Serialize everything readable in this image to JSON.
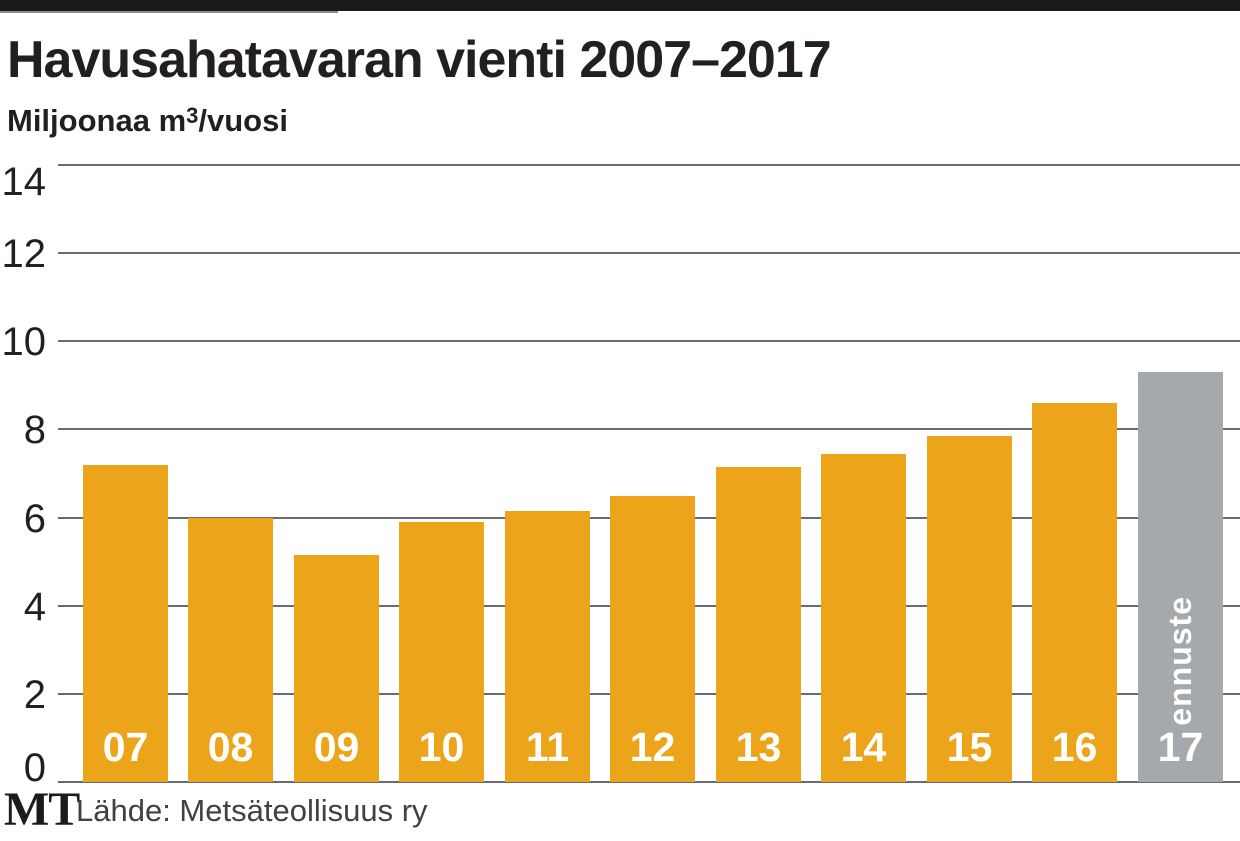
{
  "header": {
    "title": "Havusahatavaran vienti 2007–2017",
    "unit_prefix": "Miljoonaa m",
    "unit_sup": "3",
    "unit_suffix": "/vuosi"
  },
  "chart_data": {
    "type": "bar",
    "title": "Havusahatavaran vienti 2007–2017",
    "ylabel": "Miljoonaa m3/vuosi",
    "xlabel": "",
    "categories": [
      "07",
      "08",
      "09",
      "10",
      "11",
      "12",
      "13",
      "14",
      "15",
      "16",
      "17"
    ],
    "values": [
      7.2,
      6.0,
      5.15,
      5.9,
      6.15,
      6.5,
      7.15,
      7.45,
      7.85,
      8.6,
      9.3
    ],
    "ylim": [
      0,
      14
    ],
    "yticks": [
      14,
      12,
      10,
      8,
      6,
      4,
      2,
      0
    ],
    "grid": true,
    "legend": "none",
    "forecast": {
      "index": 10,
      "label": "ennuste"
    },
    "colors": {
      "bar": "#ECA41A",
      "forecast_bar": "#A6A9AB",
      "gridline": "#6A6B6D",
      "label_on_bar": "#FFFFFF",
      "text": "#231F20",
      "top_bar": "#1C1A1B"
    }
  },
  "footer": {
    "logo": "MT",
    "source": "Lähde: Metsäteollisuus ry"
  }
}
